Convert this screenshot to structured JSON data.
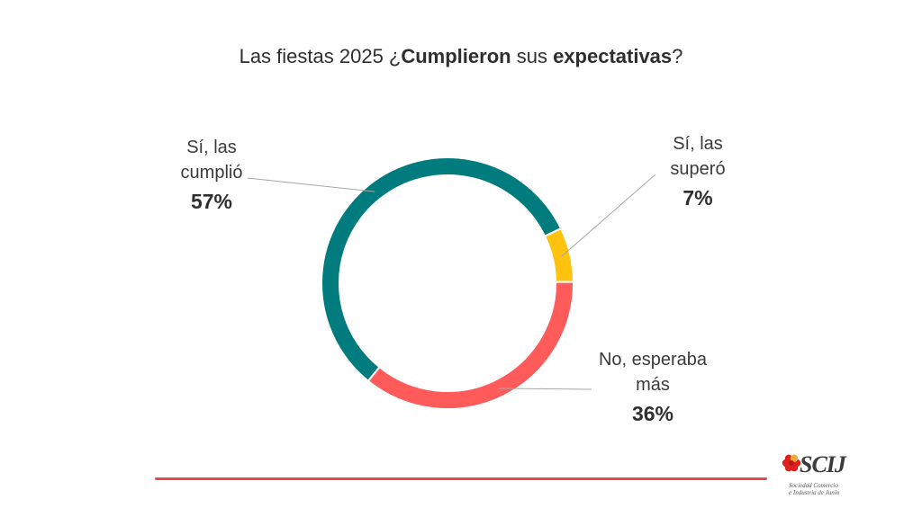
{
  "chart_data": {
    "type": "pie",
    "title_parts": [
      {
        "text": "Las fiestas 2025 ¿",
        "bold": false
      },
      {
        "text": "Cumplieron",
        "bold": true
      },
      {
        "text": " sus ",
        "bold": false
      },
      {
        "text": "expectativas",
        "bold": true
      },
      {
        "text": "?",
        "bold": false
      }
    ],
    "slices": [
      {
        "label_lines": [
          "Sí, las",
          "cumplió"
        ],
        "value": 57,
        "display": "57%",
        "color": "#007b7e"
      },
      {
        "label_lines": [
          "Sí, las",
          "superó"
        ],
        "value": 7,
        "display": "7%",
        "color": "#ffc20e"
      },
      {
        "label_lines": [
          "No, esperaba",
          "más"
        ],
        "value": 36,
        "display": "36%",
        "color": "#ff5b5b"
      }
    ]
  },
  "logo": {
    "name": "SCIJ",
    "sub_line_1": "Sociedad Comercio",
    "sub_line_2": "e Industria de Junín",
    "mark_color": "#e02020"
  }
}
